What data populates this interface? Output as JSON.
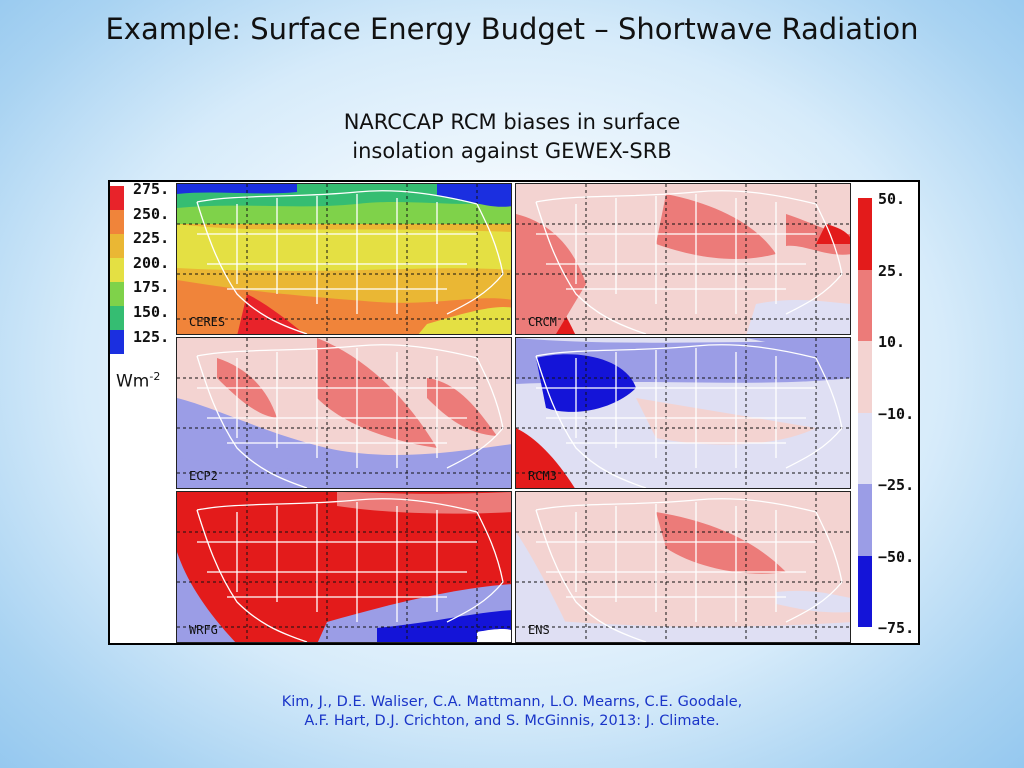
{
  "slide": {
    "title": "Example: Surface Energy Budget – Shortwave Radiation",
    "subtitle_line1": "NARCCAP RCM biases in surface",
    "subtitle_line2": "insolation against GEWEX-SRB",
    "citation_line1": "Kim, J., D.E. Waliser, C.A. Mattmann, L.O. Mearns, C.E. Goodale,",
    "citation_line2": "A.F. Hart, D.J. Crichton, and S. McGinnis, 2013: J. Climate."
  },
  "left_colorbar": {
    "units": "Wm",
    "units_exponent": "-2",
    "labels": [
      "275.",
      "250.",
      "225.",
      "200.",
      "175.",
      "150.",
      "125."
    ],
    "colors": [
      "#e8232a",
      "#f0843a",
      "#eab734",
      "#e4e043",
      "#7fd24a",
      "#35bd72",
      "#1b2fe0"
    ]
  },
  "right_colorbar": {
    "labels": [
      "50.",
      "25.",
      "10.",
      "−10.",
      "−25.",
      "−50.",
      "−75."
    ],
    "colors": [
      "#e31b1b",
      "#ec7b79",
      "#f3d3d1",
      "#dfdff3",
      "#9b9de6",
      "#1414d8"
    ]
  },
  "panels": [
    {
      "label": "CERES",
      "palette": "absolute"
    },
    {
      "label": "CRCM",
      "palette": "bias"
    },
    {
      "label": "ECP2",
      "palette": "bias"
    },
    {
      "label": "RCM3",
      "palette": "bias"
    },
    {
      "label": "WRFG",
      "palette": "bias"
    },
    {
      "label": "ENS",
      "palette": "bias"
    }
  ]
}
